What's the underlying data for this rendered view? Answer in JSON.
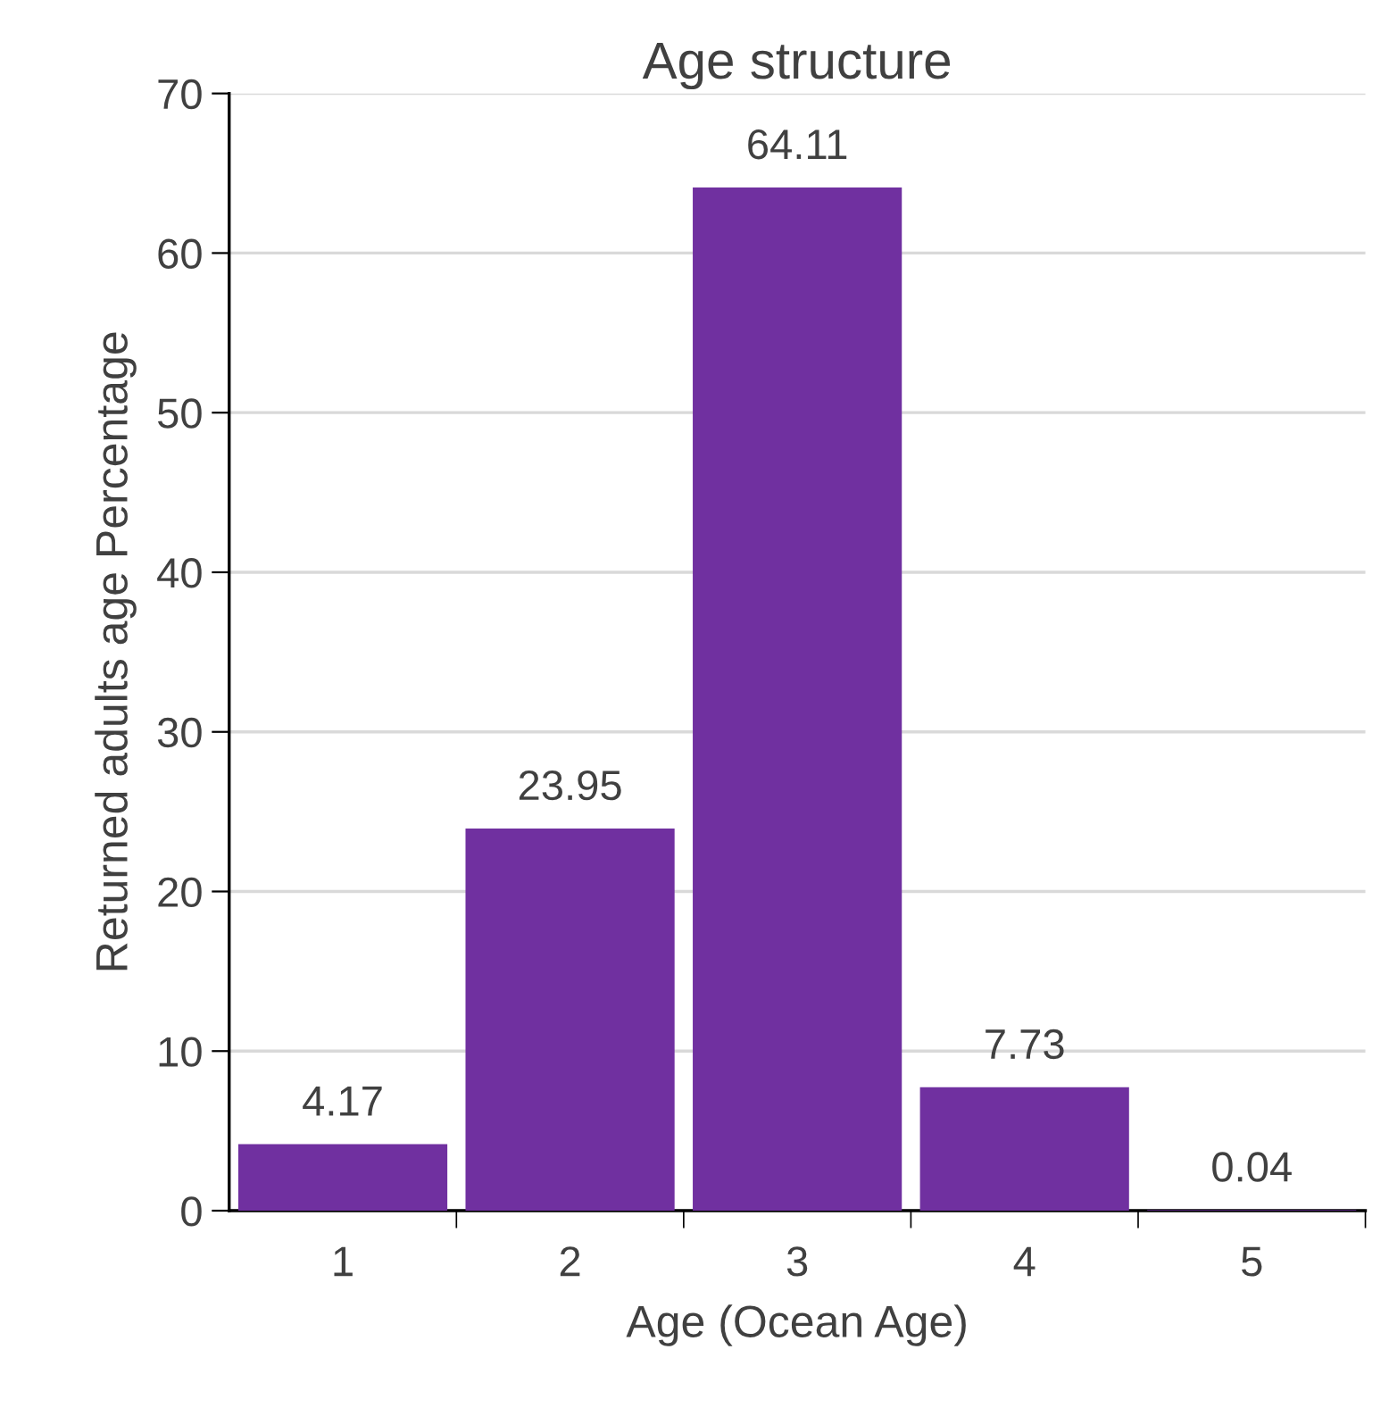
{
  "chart_data": {
    "type": "bar",
    "title": "Age structure",
    "xlabel": "Age (Ocean Age)",
    "ylabel": "Returned adults age Percentage",
    "categories": [
      "1",
      "2",
      "3",
      "4",
      "5"
    ],
    "values": [
      4.17,
      23.95,
      64.11,
      7.73,
      0.04
    ],
    "color": "#7030a0",
    "ylim": [
      0,
      70
    ],
    "yticks": [
      0,
      10,
      20,
      30,
      40,
      50,
      60,
      70
    ],
    "grid": "y",
    "data_labels": true
  }
}
